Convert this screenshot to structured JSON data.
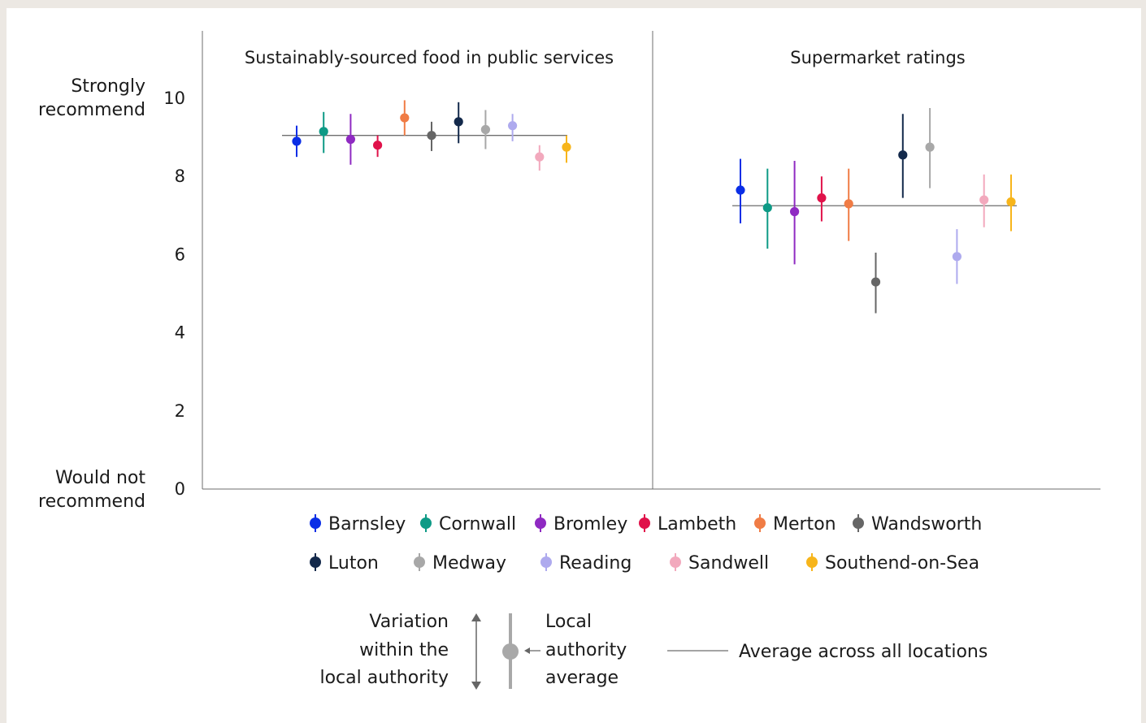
{
  "chart_data": {
    "type": "scatter",
    "y_axis": {
      "top_label": [
        "Strongly",
        "recommend"
      ],
      "bottom_label": [
        "Would not",
        "recommend"
      ],
      "ticks": [
        "0",
        "2",
        "4",
        "6",
        "8",
        "10"
      ],
      "ylim": [
        0,
        10.5
      ]
    },
    "panels": [
      {
        "title": "Sustainably-sourced food in public services",
        "average": 9.05,
        "points": [
          {
            "name": "Barnsley",
            "mean": 8.9,
            "low": 8.5,
            "high": 9.3
          },
          {
            "name": "Cornwall",
            "mean": 9.15,
            "low": 8.6,
            "high": 9.65
          },
          {
            "name": "Bromley",
            "mean": 8.95,
            "low": 8.3,
            "high": 9.6
          },
          {
            "name": "Lambeth",
            "mean": 8.8,
            "low": 8.5,
            "high": 9.05
          },
          {
            "name": "Merton",
            "mean": 9.5,
            "low": 9.05,
            "high": 9.95
          },
          {
            "name": "Wandsworth",
            "mean": 9.05,
            "low": 8.65,
            "high": 9.4
          },
          {
            "name": "Luton",
            "mean": 9.4,
            "low": 8.85,
            "high": 9.9
          },
          {
            "name": "Medway",
            "mean": 9.2,
            "low": 8.7,
            "high": 9.7
          },
          {
            "name": "Reading",
            "mean": 9.3,
            "low": 8.9,
            "high": 9.6
          },
          {
            "name": "Sandwell",
            "mean": 8.5,
            "low": 8.15,
            "high": 8.8
          },
          {
            "name": "Southend-on-Sea",
            "mean": 8.75,
            "low": 8.35,
            "high": 9.05
          }
        ]
      },
      {
        "title": "Supermarket ratings",
        "average": 7.25,
        "points": [
          {
            "name": "Barnsley",
            "mean": 7.65,
            "low": 6.8,
            "high": 8.45
          },
          {
            "name": "Cornwall",
            "mean": 7.2,
            "low": 6.15,
            "high": 8.2
          },
          {
            "name": "Bromley",
            "mean": 7.1,
            "low": 5.75,
            "high": 8.4
          },
          {
            "name": "Lambeth",
            "mean": 7.45,
            "low": 6.85,
            "high": 8.0
          },
          {
            "name": "Merton",
            "mean": 7.3,
            "low": 6.35,
            "high": 8.2
          },
          {
            "name": "Wandsworth",
            "mean": 5.3,
            "low": 4.5,
            "high": 6.05
          },
          {
            "name": "Luton",
            "mean": 8.55,
            "low": 7.45,
            "high": 9.6
          },
          {
            "name": "Medway",
            "mean": 8.75,
            "low": 7.7,
            "high": 9.75
          },
          {
            "name": "Reading",
            "mean": 5.95,
            "low": 5.25,
            "high": 6.65
          },
          {
            "name": "Sandwell",
            "mean": 7.4,
            "low": 6.7,
            "high": 8.05
          },
          {
            "name": "Southend-on-Sea",
            "mean": 7.35,
            "low": 6.6,
            "high": 8.05
          }
        ]
      }
    ],
    "series": [
      {
        "name": "Barnsley",
        "color": "#0a2ee6"
      },
      {
        "name": "Cornwall",
        "color": "#0e9a86"
      },
      {
        "name": "Bromley",
        "color": "#8f2ac2"
      },
      {
        "name": "Lambeth",
        "color": "#e0124a"
      },
      {
        "name": "Merton",
        "color": "#f07c45"
      },
      {
        "name": "Wandsworth",
        "color": "#666666"
      },
      {
        "name": "Luton",
        "color": "#13294b"
      },
      {
        "name": "Medway",
        "color": "#a8a8a8"
      },
      {
        "name": "Reading",
        "color": "#aeaaee"
      },
      {
        "name": "Sandwell",
        "color": "#f2a9bd"
      },
      {
        "name": "Southend-on-Sea",
        "color": "#f7b51b"
      }
    ],
    "key": {
      "variation": [
        "Variation",
        "within the",
        "local authority"
      ],
      "local_average": [
        "Local",
        "authority",
        "average"
      ],
      "overall_average": "Average across all locations"
    },
    "legend_placement": "bottom",
    "grid": false
  }
}
